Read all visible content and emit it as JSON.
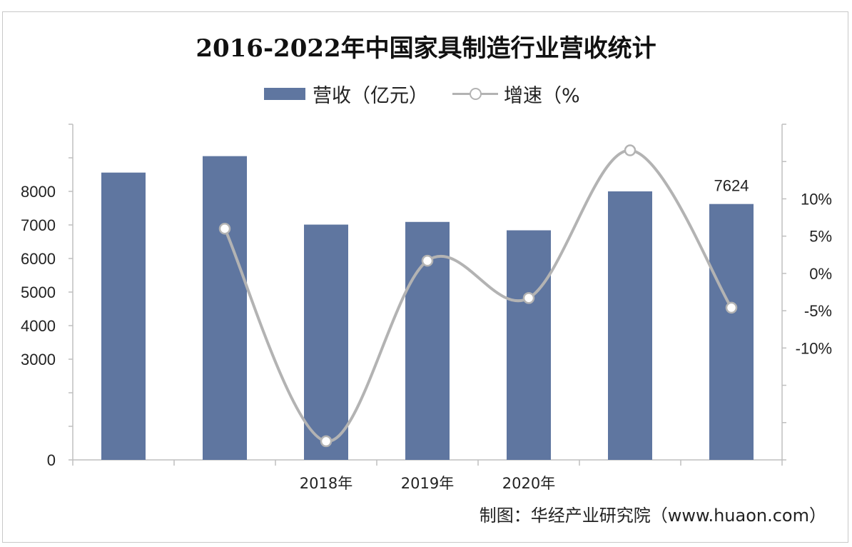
{
  "chart_data": {
    "type": "bar+line",
    "title": "2016-2022年中国家具制造行业营收统计",
    "categories": [
      "",
      "",
      "2018年",
      "2019年",
      "2020年",
      "",
      ""
    ],
    "series": [
      {
        "name": "营收（亿元）",
        "type": "bar",
        "axis": "left",
        "color": "#5f76a0",
        "values": [
          8560,
          9050,
          7010,
          7090,
          6840,
          8000,
          7624
        ]
      },
      {
        "name": "增速（%",
        "type": "line",
        "axis": "right",
        "color": "#b3b3b3",
        "values": [
          null,
          6,
          -22.5,
          1.7,
          -3.3,
          16.5,
          -4.6
        ]
      }
    ],
    "data_labels": [
      {
        "series": 0,
        "index": 6,
        "text": "7624"
      }
    ],
    "y_left": {
      "ticks": [
        "0",
        "",
        "",
        "3000",
        "4000",
        "5000",
        "6000",
        "7000",
        "8000",
        "",
        ""
      ],
      "values": [
        0,
        1000,
        2000,
        3000,
        4000,
        5000,
        6000,
        7000,
        8000,
        9000,
        10000
      ],
      "ylim": [
        0,
        10000
      ]
    },
    "y_right": {
      "ticks": [
        "",
        "",
        "",
        "-10%",
        "-5%",
        "0%",
        "5%",
        "10%",
        "",
        ""
      ],
      "values": [
        -25,
        -20,
        -15,
        -10,
        -5,
        0,
        5,
        10,
        15,
        20
      ],
      "ylim": [
        -25,
        20
      ]
    },
    "legend_position": "top-center",
    "grid": false
  },
  "source_note": "制图：华经产业研究院（www.huaon.com）"
}
